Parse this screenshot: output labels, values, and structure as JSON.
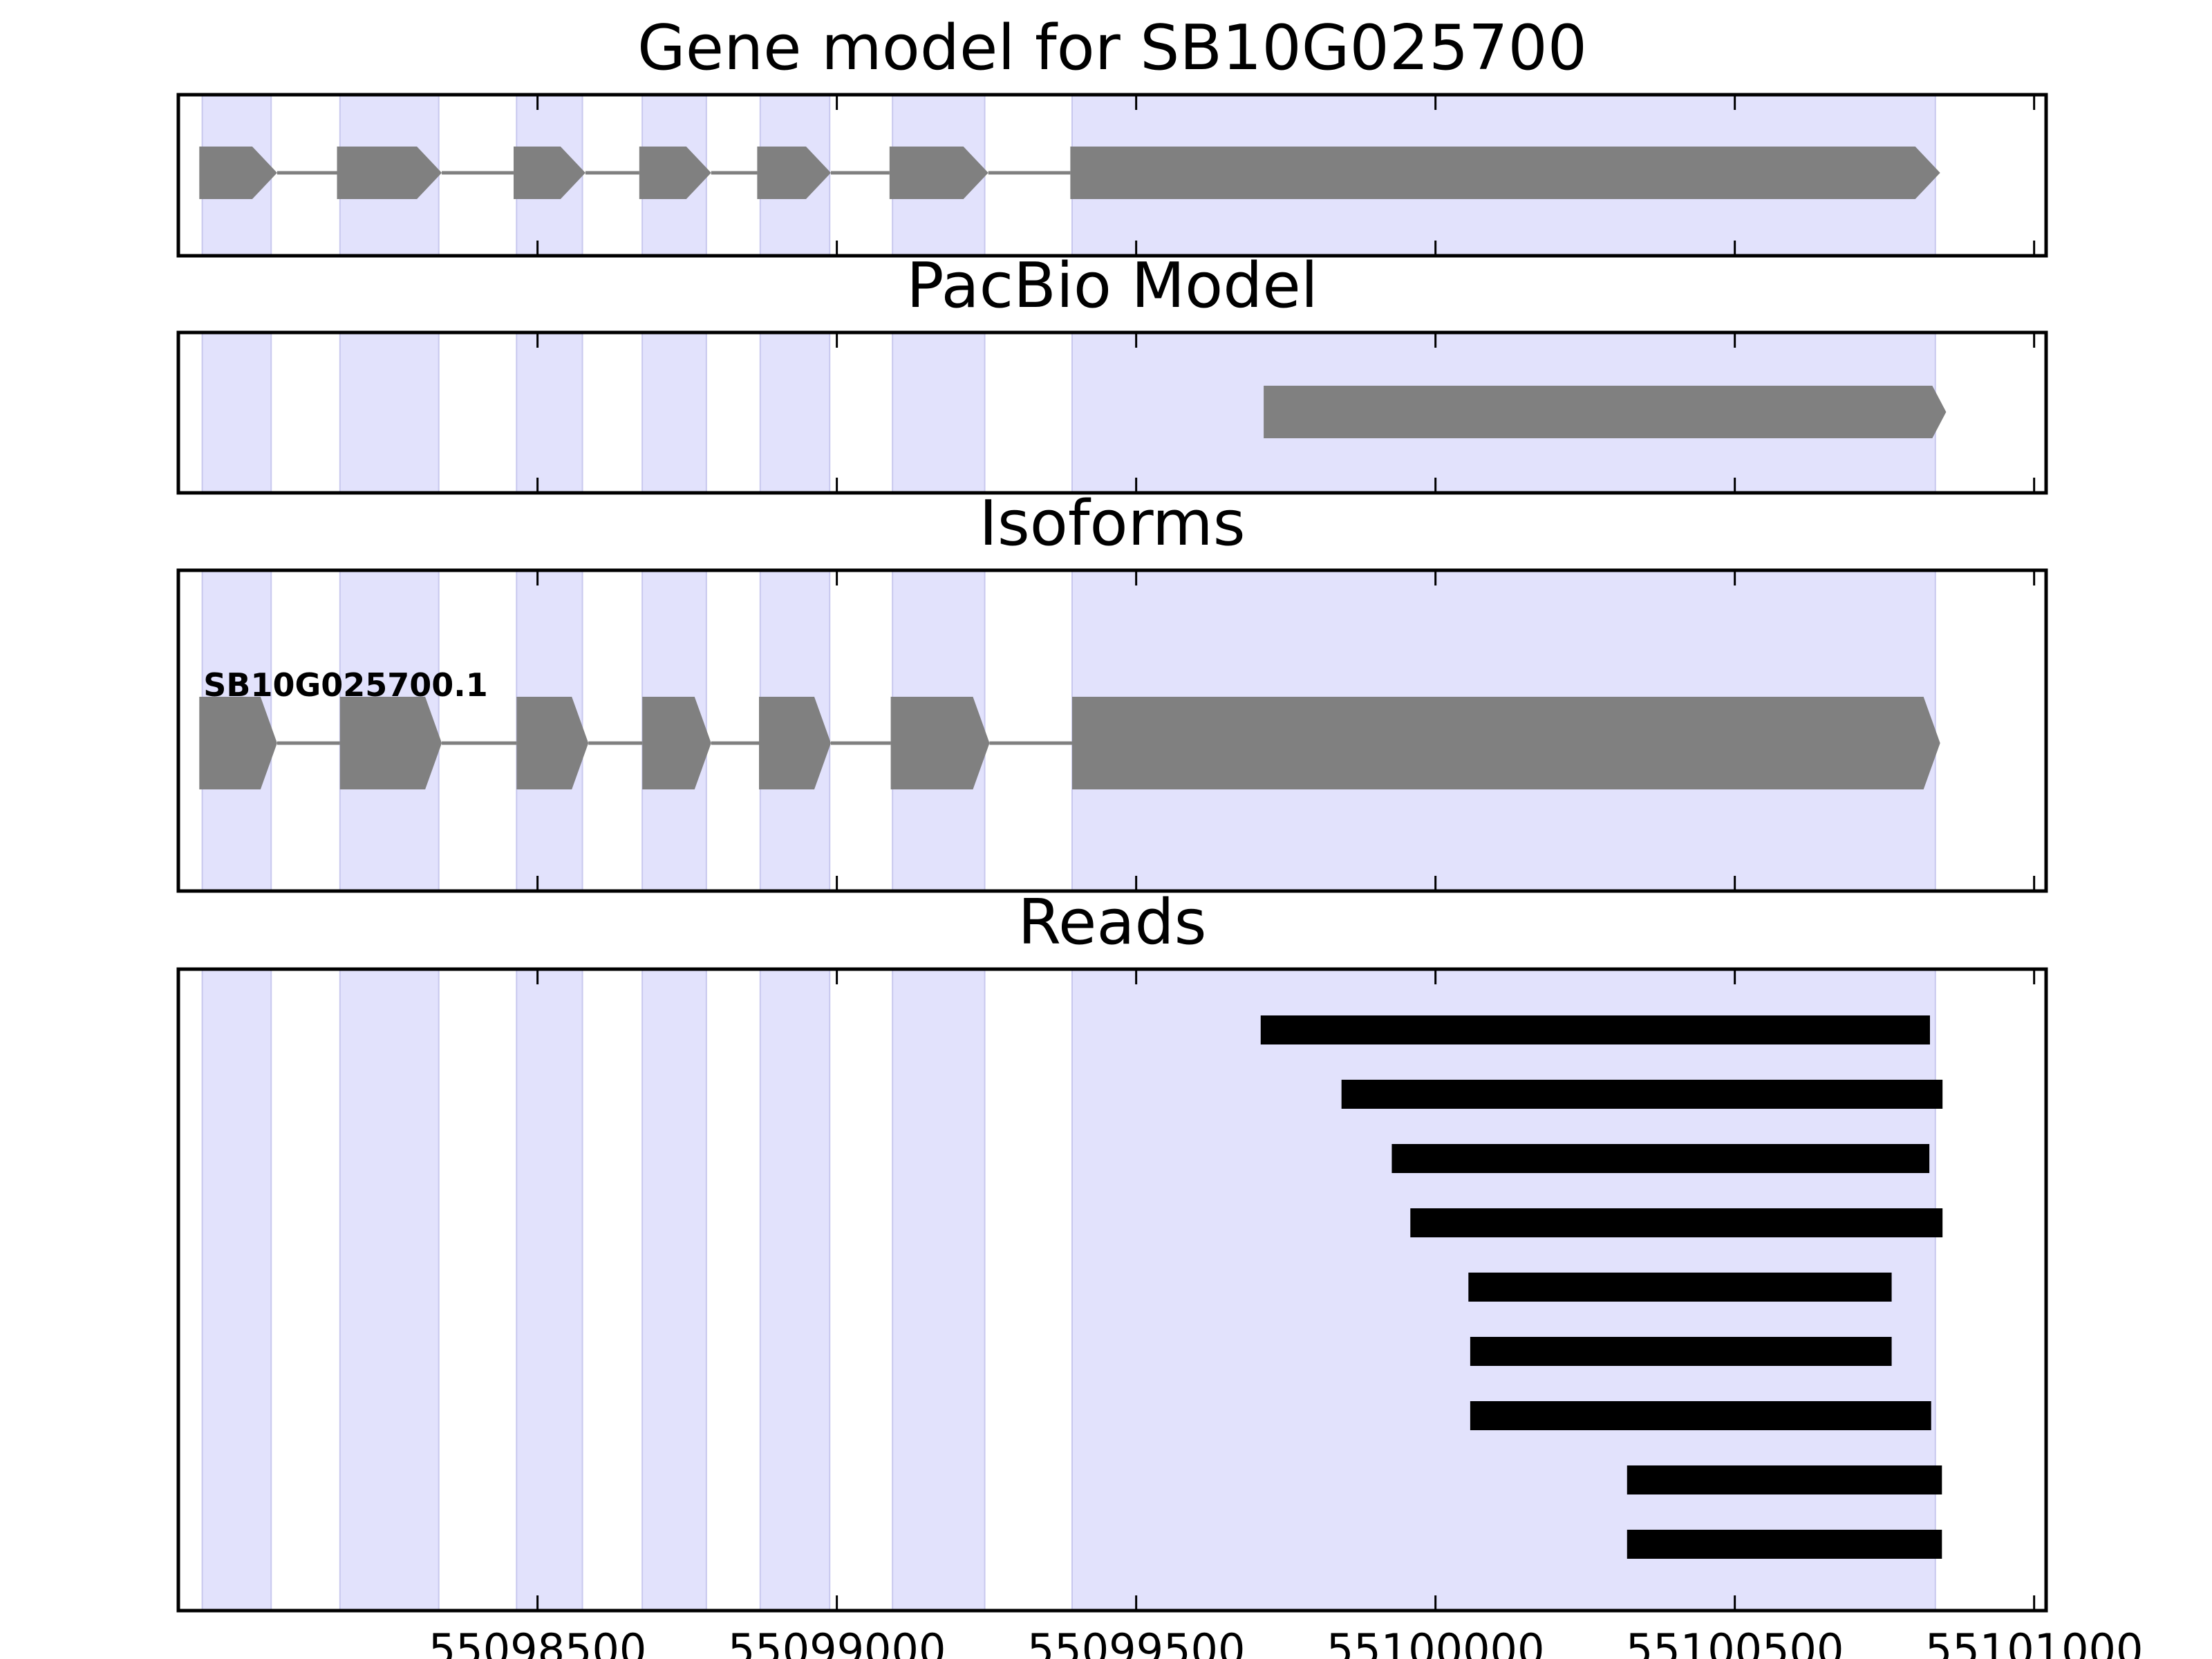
{
  "figure_title": "Gene model for SB10G025700",
  "colors": {
    "exon_band": "#e2e2fc",
    "gene_feature": "#808080",
    "read": "#000000",
    "axes_frame": "#000000",
    "background": "#ffffff"
  },
  "chart_data": {
    "type": "gene-track",
    "xlim": [
      55097900,
      55101020
    ],
    "xticks": [
      55098500,
      55099000,
      55099500,
      55100000,
      55100500,
      55101000
    ],
    "xtick_labels": [
      "55098500",
      "55099000",
      "55099500",
      "55100000",
      "55100500",
      "55101000"
    ],
    "exon_bands": [
      [
        55097940,
        55098055
      ],
      [
        55098170,
        55098335
      ],
      [
        55098465,
        55098575
      ],
      [
        55098675,
        55098782
      ],
      [
        55098872,
        55098988
      ],
      [
        55099093,
        55099247
      ],
      [
        55099393,
        55100835
      ]
    ],
    "panels": [
      {
        "title": "Gene model for SB10G025700",
        "features": [
          {
            "label": "",
            "exons": [
              [
                55097935,
                55098065
              ],
              [
                55098165,
                55098340
              ],
              [
                55098460,
                55098580
              ],
              [
                55098670,
                55098790
              ],
              [
                55098867,
                55098990
              ],
              [
                55099088,
                55099253
              ],
              [
                55099390,
                55100843
              ]
            ]
          }
        ]
      },
      {
        "title": "PacBio Model",
        "features": [
          {
            "label": "",
            "exons": [
              [
                55099713,
                55100853
              ]
            ]
          }
        ]
      },
      {
        "title": "Isoforms",
        "features": [
          {
            "label": "SB10G025700.1",
            "exons": [
              [
                55097935,
                55098065
              ],
              [
                55098170,
                55098340
              ],
              [
                55098465,
                55098585
              ],
              [
                55098675,
                55098790
              ],
              [
                55098870,
                55098990
              ],
              [
                55099090,
                55099255
              ],
              [
                55099393,
                55100843
              ]
            ]
          }
        ]
      },
      {
        "title": "Reads",
        "reads": [
          [
            55099708,
            55100826
          ],
          [
            55099843,
            55100847
          ],
          [
            55099927,
            55100825
          ],
          [
            55099958,
            55100847
          ],
          [
            55100055,
            55100762
          ],
          [
            55100058,
            55100762
          ],
          [
            55100058,
            55100828
          ],
          [
            55100320,
            55100846
          ],
          [
            55100320,
            55100846
          ]
        ]
      }
    ]
  }
}
